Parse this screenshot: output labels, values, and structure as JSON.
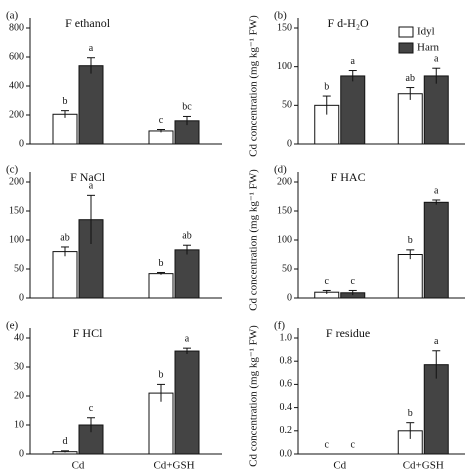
{
  "chart_data": [
    {
      "type": "bar",
      "panel": "(a)",
      "title": "F ethanol",
      "ylabel": "Cd concentration (mg kg⁻¹ FW)",
      "ylim": [
        0,
        800
      ],
      "yticks": [
        0,
        200,
        400,
        600,
        800
      ],
      "series": [
        {
          "name": "Idyl",
          "color": "#ffffff",
          "values": [
            205,
            90
          ],
          "errors": [
            25,
            10
          ],
          "letters": [
            "b",
            "c"
          ]
        },
        {
          "name": "Harn",
          "color": "#444444",
          "values": [
            540,
            160
          ],
          "errors": [
            55,
            30
          ],
          "letters": [
            "a",
            "bc"
          ]
        }
      ]
    },
    {
      "type": "bar",
      "panel": "(b)",
      "title": "F d-H₂O",
      "ylabel": "Cd concentration (mg kg⁻¹ FW)",
      "ylim": [
        0,
        150
      ],
      "yticks": [
        0,
        50,
        100,
        150
      ],
      "legend": "upper right",
      "series": [
        {
          "name": "Idyl",
          "color": "#ffffff",
          "values": [
            50,
            65
          ],
          "errors": [
            12,
            8
          ],
          "letters": [
            "b",
            "ab"
          ]
        },
        {
          "name": "Harn",
          "color": "#444444",
          "values": [
            88,
            88
          ],
          "errors": [
            7,
            10
          ],
          "letters": [
            "a",
            "a"
          ]
        }
      ]
    },
    {
      "type": "bar",
      "panel": "(c)",
      "title": "F NaCl",
      "ylabel": "Cd concentration (mg kg⁻¹ FW)",
      "ylim": [
        0,
        200
      ],
      "yticks": [
        0,
        50,
        100,
        150,
        200
      ],
      "series": [
        {
          "name": "Idyl",
          "color": "#ffffff",
          "values": [
            80,
            42
          ],
          "errors": [
            8,
            2
          ],
          "letters": [
            "ab",
            "b"
          ]
        },
        {
          "name": "Harn",
          "color": "#444444",
          "values": [
            135,
            83
          ],
          "errors": [
            42,
            8
          ],
          "letters": [
            "a",
            "ab"
          ]
        }
      ]
    },
    {
      "type": "bar",
      "panel": "(d)",
      "title": "F HAC",
      "ylabel": "Cd concentration (mg kg⁻¹ FW)",
      "ylim": [
        0,
        200
      ],
      "yticks": [
        0,
        50,
        100,
        150,
        200
      ],
      "series": [
        {
          "name": "Idyl",
          "color": "#ffffff",
          "values": [
            10,
            75
          ],
          "errors": [
            3,
            8
          ],
          "letters": [
            "c",
            "b"
          ]
        },
        {
          "name": "Harn",
          "color": "#444444",
          "values": [
            9,
            165
          ],
          "errors": [
            4,
            4
          ],
          "letters": [
            "c",
            "a"
          ]
        }
      ]
    },
    {
      "type": "bar",
      "panel": "(e)",
      "title": "F HCl",
      "ylabel": "Cd concentration (mg kg⁻¹ FW)",
      "ylim": [
        0,
        40
      ],
      "yticks": [
        0,
        10,
        20,
        30,
        40
      ],
      "categories": [
        "Cd",
        "Cd+GSH"
      ],
      "series": [
        {
          "name": "Idyl",
          "color": "#ffffff",
          "values": [
            0.8,
            21
          ],
          "errors": [
            0.3,
            3
          ],
          "letters": [
            "d",
            "b"
          ]
        },
        {
          "name": "Harn",
          "color": "#444444",
          "values": [
            10,
            35.5
          ],
          "errors": [
            2.5,
            1
          ],
          "letters": [
            "c",
            "a"
          ]
        }
      ]
    },
    {
      "type": "bar",
      "panel": "(f)",
      "title": "F residue",
      "ylabel": "Cd concentration (mg kg⁻¹ FW)",
      "ylim": [
        0,
        1.0
      ],
      "yticks": [
        {
          "value": 0,
          "label": "0.0"
        },
        {
          "value": 0.2,
          "label": "0.2"
        },
        {
          "value": 0.4,
          "label": "0.4"
        },
        {
          "value": 0.6,
          "label": "0.6"
        },
        {
          "value": 0.8,
          "label": "0.8"
        },
        {
          "value": 1.0,
          "label": "1.0"
        }
      ],
      "categories": [
        "Cd",
        "Cd+GSH"
      ],
      "series": [
        {
          "name": "Idyl",
          "color": "#ffffff",
          "values": [
            0,
            0.2
          ],
          "errors": [
            0,
            0.07
          ],
          "letters": [
            "c",
            "b"
          ]
        },
        {
          "name": "Harn",
          "color": "#444444",
          "values": [
            0,
            0.77
          ],
          "errors": [
            0,
            0.12
          ],
          "letters": [
            "c",
            "a"
          ]
        }
      ]
    }
  ]
}
